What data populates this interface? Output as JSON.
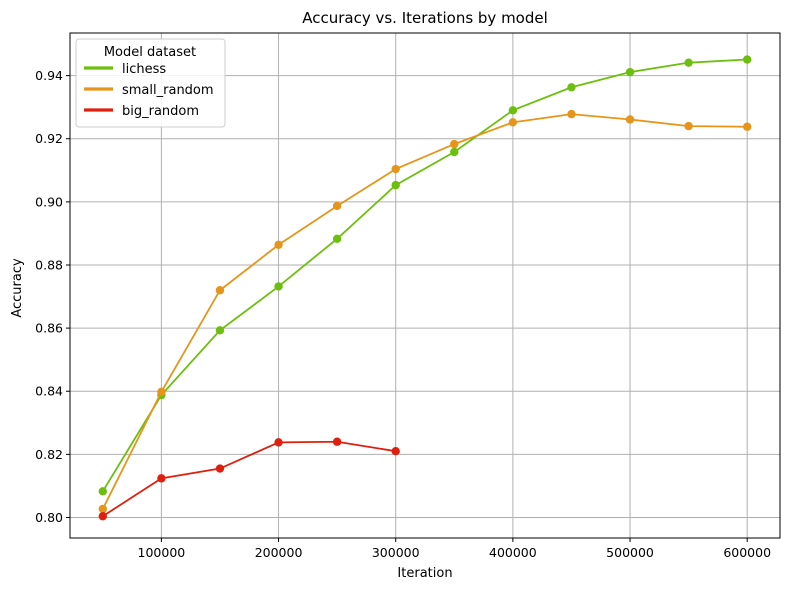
{
  "chart_data": {
    "type": "line",
    "title": "Accuracy vs. Iterations by model",
    "xlabel": "Iteration",
    "ylabel": "Accuracy",
    "xlim": [
      22000,
      628000
    ],
    "ylim": [
      0.7935,
      0.9535
    ],
    "xticks": [
      100000,
      200000,
      300000,
      400000,
      500000,
      600000
    ],
    "xtick_labels": [
      "100000",
      "200000",
      "300000",
      "400000",
      "500000",
      "600000"
    ],
    "yticks": [
      0.8,
      0.82,
      0.84,
      0.86,
      0.88,
      0.9,
      0.92,
      0.94
    ],
    "ytick_labels": [
      "0.80",
      "0.82",
      "0.84",
      "0.86",
      "0.88",
      "0.90",
      "0.92",
      "0.94"
    ],
    "grid": true,
    "legend": {
      "title": "Model dataset",
      "placement": "top-left"
    },
    "series": [
      {
        "name": "lichess",
        "color": "#6dbf0e",
        "x": [
          50000,
          100000,
          150000,
          200000,
          250000,
          300000,
          350000,
          400000,
          450000,
          500000,
          550000,
          600000
        ],
        "y": [
          0.8083,
          0.8388,
          0.8593,
          0.8732,
          0.8883,
          0.9053,
          0.9158,
          0.929,
          0.9363,
          0.9411,
          0.9441,
          0.9451
        ]
      },
      {
        "name": "small_random",
        "color": "#e5961a",
        "x": [
          50000,
          100000,
          150000,
          200000,
          250000,
          300000,
          350000,
          400000,
          450000,
          500000,
          550000,
          600000
        ],
        "y": [
          0.8027,
          0.8398,
          0.872,
          0.8864,
          0.8987,
          0.9104,
          0.9183,
          0.9252,
          0.9278,
          0.9261,
          0.924,
          0.9238
        ]
      },
      {
        "name": "big_random",
        "color": "#e0200f",
        "x": [
          50000,
          100000,
          150000,
          200000,
          250000,
          300000
        ],
        "y": [
          0.8004,
          0.8124,
          0.8155,
          0.8238,
          0.824,
          0.821
        ]
      }
    ]
  }
}
